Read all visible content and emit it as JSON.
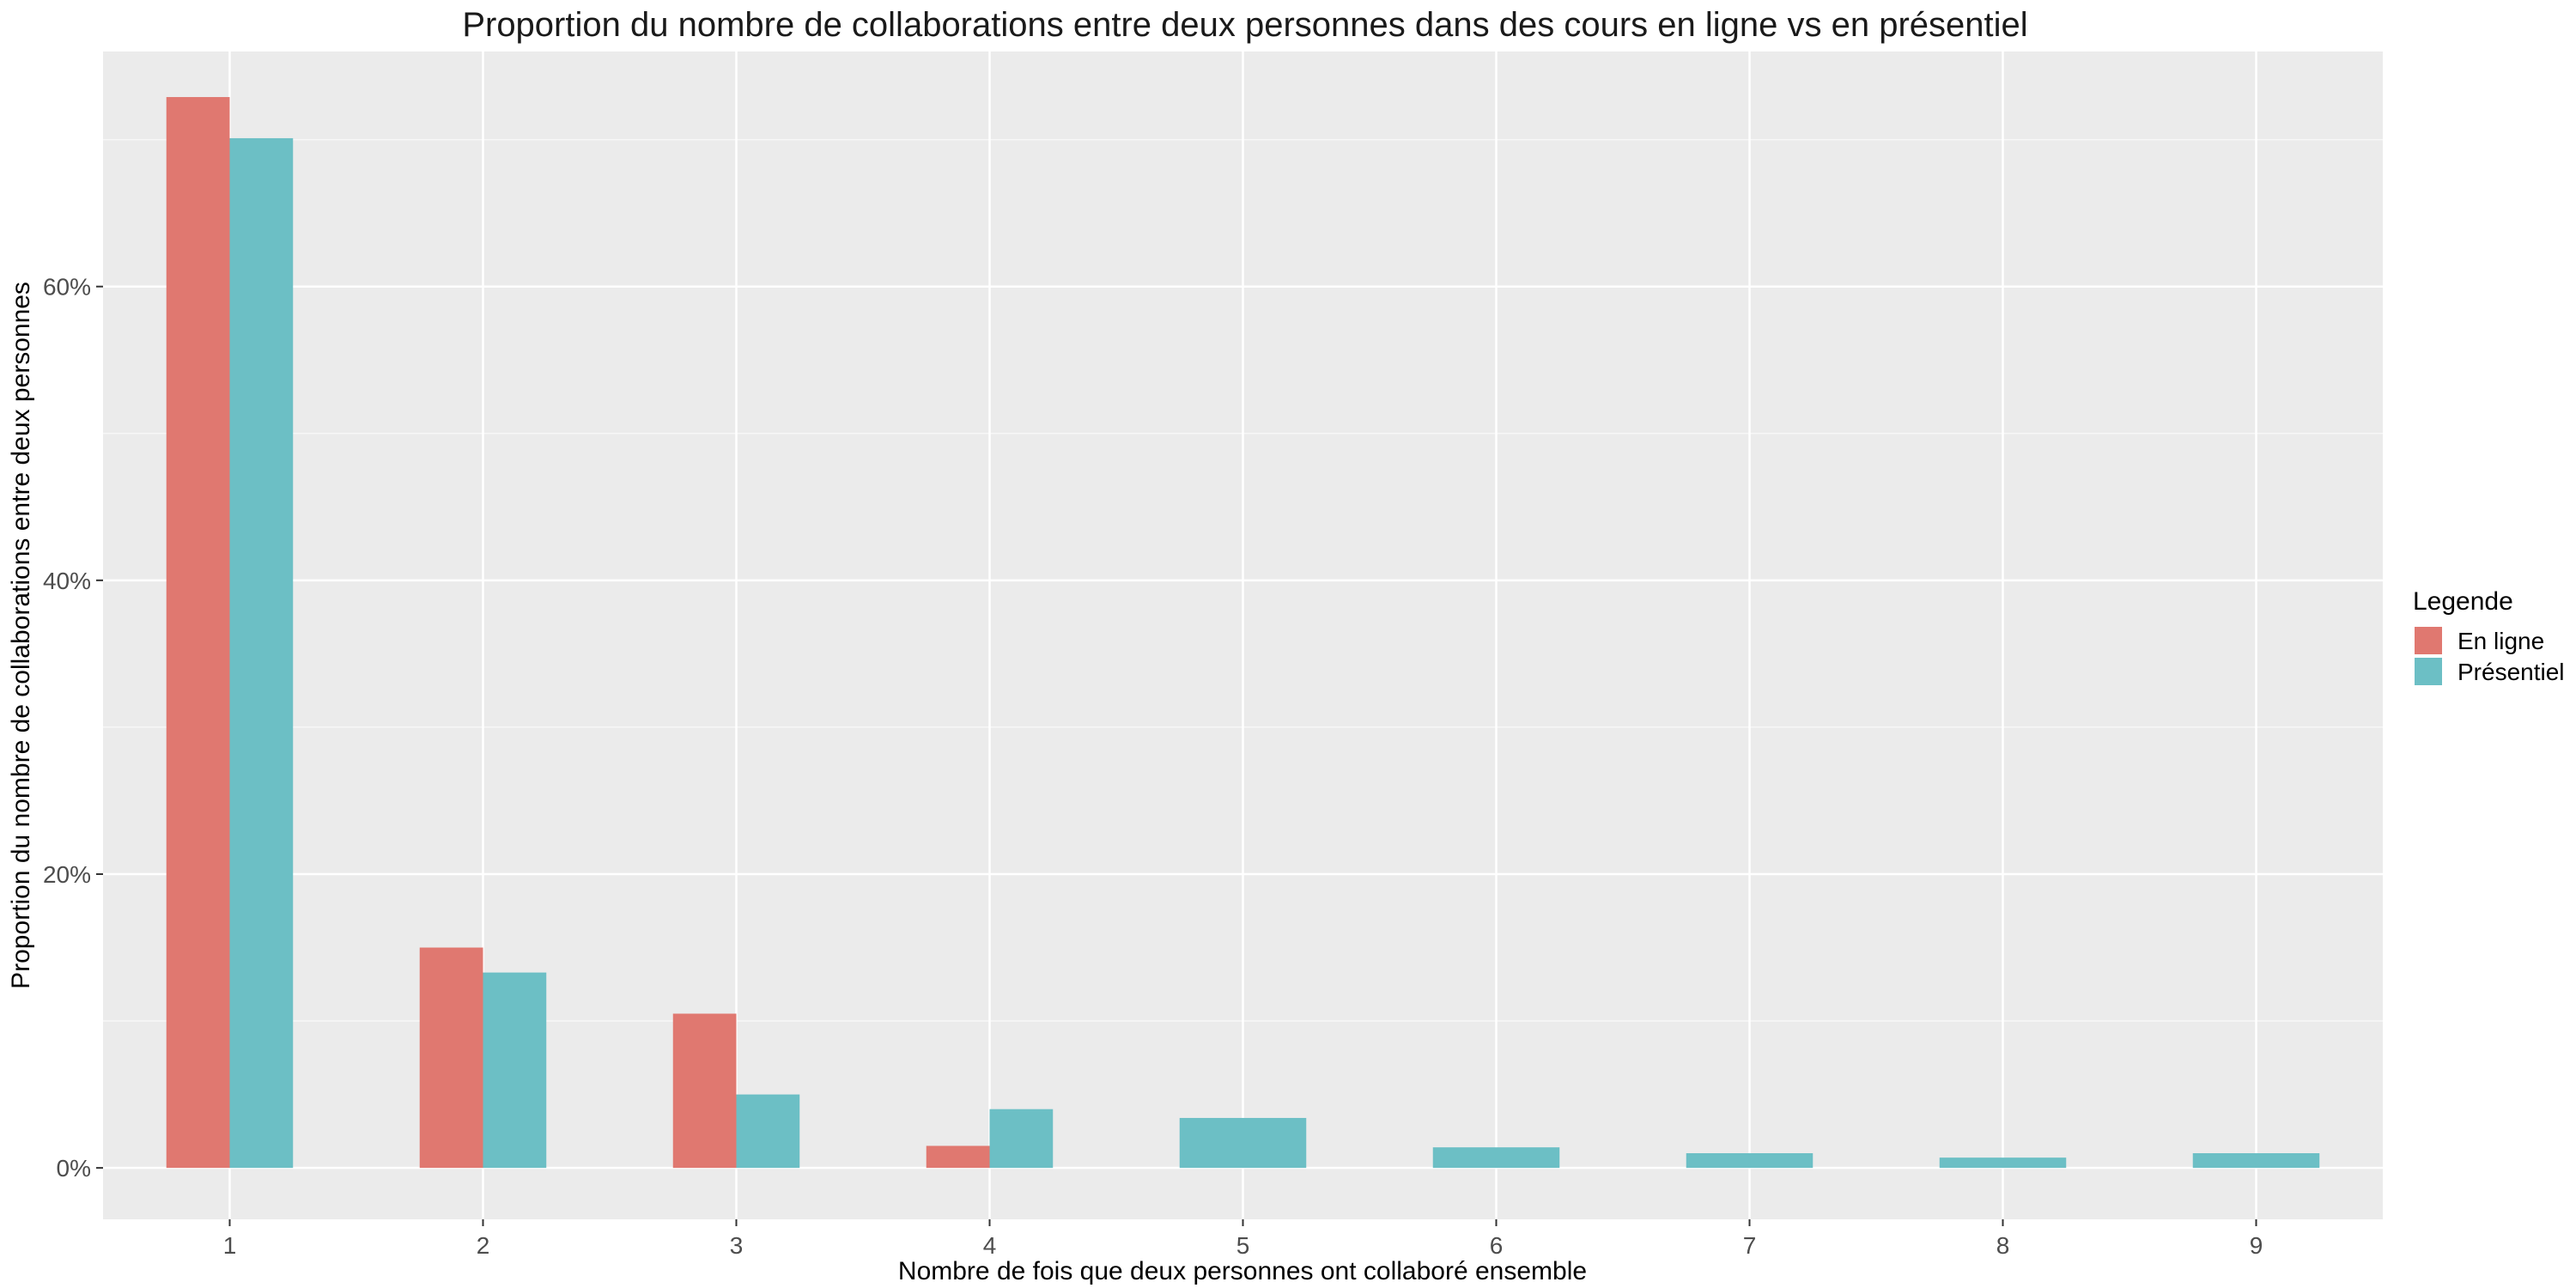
{
  "chart_data": {
    "type": "bar",
    "title": "Proportion du nombre de collaborations entre deux personnes dans des cours en ligne vs en présentiel",
    "xlabel": "Nombre de fois que deux personnes ont collaboré ensemble",
    "ylabel": "Proportion du nombre de collaborations entre deux personnes",
    "categories": [
      "1",
      "2",
      "3",
      "4",
      "5",
      "6",
      "7",
      "8",
      "9"
    ],
    "ylim": [
      -3.5,
      76
    ],
    "y_ticks": [
      0,
      20,
      40,
      60
    ],
    "y_tick_labels": [
      "0%",
      "20%",
      "40%",
      "60%"
    ],
    "y_minor_ticks": [
      10,
      30,
      50,
      70
    ],
    "grid": true,
    "legend": {
      "title": "Legende",
      "position": "right"
    },
    "series": [
      {
        "name": "En ligne",
        "color": "#E07870",
        "values": [
          72.9,
          15.0,
          10.5,
          1.5,
          null,
          null,
          null,
          null,
          null
        ]
      },
      {
        "name": "Présentiel",
        "color": "#6CBFC5",
        "values": [
          70.1,
          13.3,
          5.0,
          4.0,
          3.4,
          1.4,
          1.0,
          0.7,
          1.0
        ]
      }
    ]
  }
}
